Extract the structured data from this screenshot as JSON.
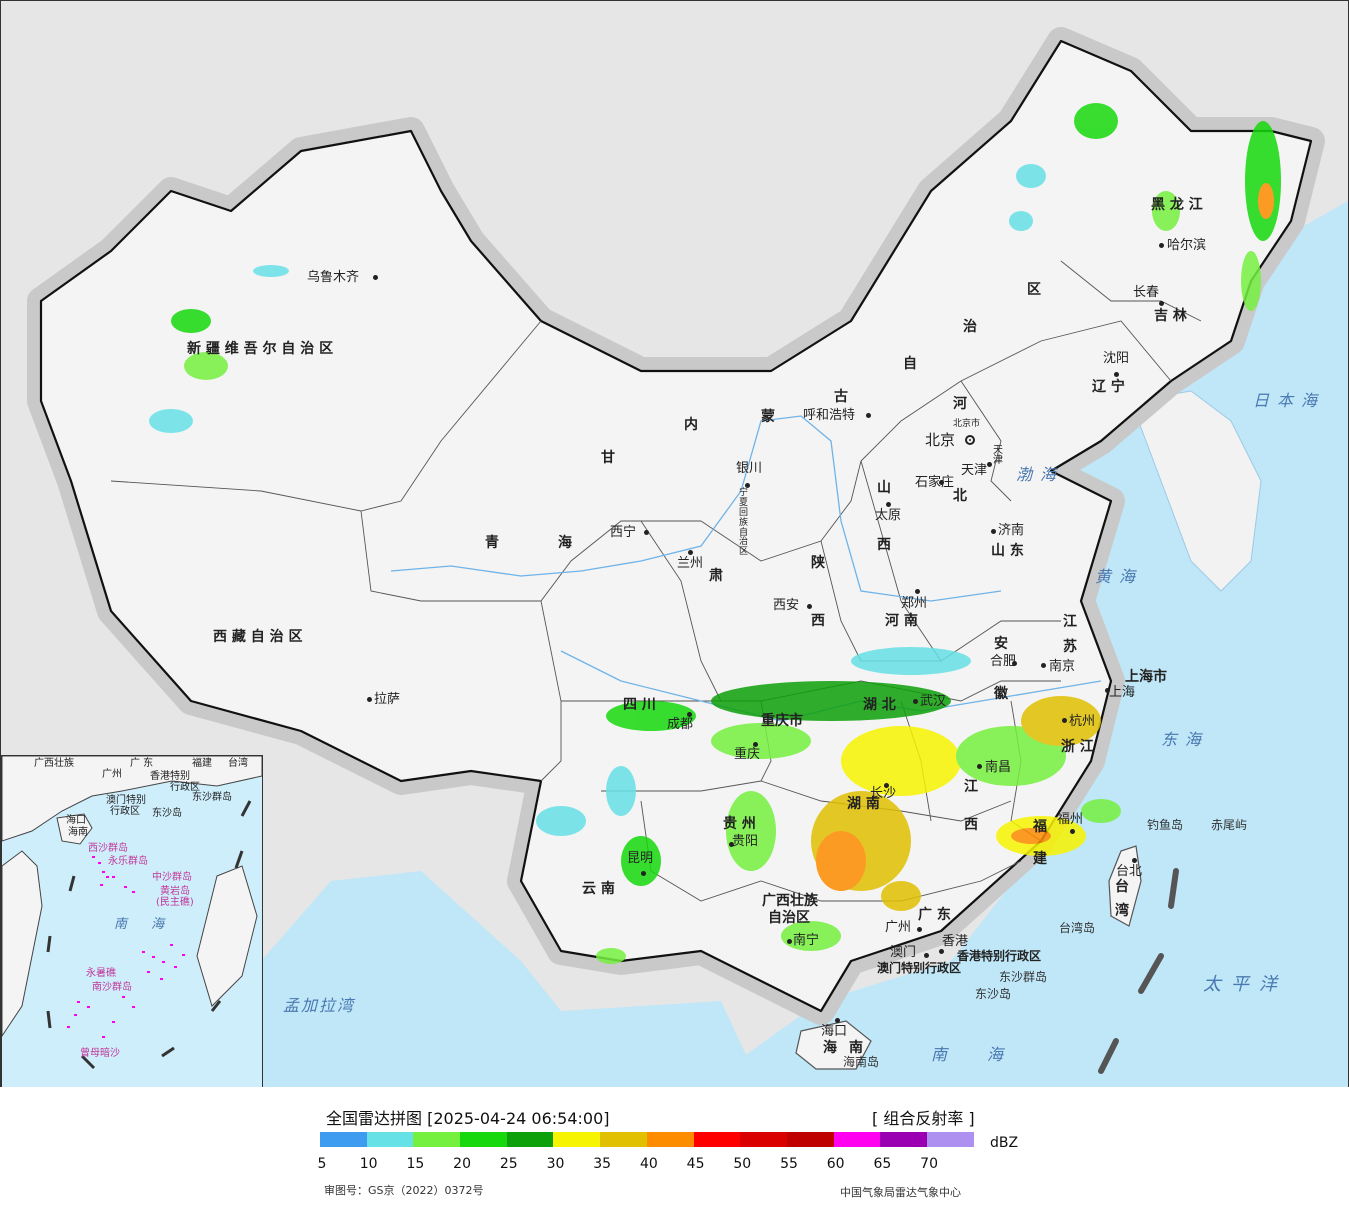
{
  "map": {
    "colors": {
      "background": "#e6e6e6",
      "land": "#f4f4f4",
      "sea": "#bfe7f8",
      "border": "#111111",
      "river": "#6fb3e8"
    },
    "provinces": [
      {
        "id": "xinjiang",
        "label": "新 疆 维 吾 尔 自 治 区"
      },
      {
        "id": "xizang",
        "label": "西 藏 自 治 区"
      },
      {
        "id": "qinghai-1",
        "label": "青"
      },
      {
        "id": "qinghai-2",
        "label": "海"
      },
      {
        "id": "gansu-1",
        "label": "甘"
      },
      {
        "id": "gansu-2",
        "label": "肃"
      },
      {
        "id": "neimenggu-1",
        "label": "内"
      },
      {
        "id": "neimenggu-2",
        "label": "蒙"
      },
      {
        "id": "neimenggu-3",
        "label": "古"
      },
      {
        "id": "neimenggu-4",
        "label": "自"
      },
      {
        "id": "neimenggu-5",
        "label": "治"
      },
      {
        "id": "neimenggu-6",
        "label": "区"
      },
      {
        "id": "heilongjiang",
        "label": "黑  龙  江"
      },
      {
        "id": "jilin",
        "label": "吉  林"
      },
      {
        "id": "liaoning",
        "label": "辽  宁"
      },
      {
        "id": "hebei-1",
        "label": "河"
      },
      {
        "id": "hebei-2",
        "label": "北"
      },
      {
        "id": "shanxi-1",
        "label": "山"
      },
      {
        "id": "shanxi-2",
        "label": "西"
      },
      {
        "id": "shaanxi-1",
        "label": "陕"
      },
      {
        "id": "shaanxi-2",
        "label": "西"
      },
      {
        "id": "shandong",
        "label": "山  东"
      },
      {
        "id": "henan",
        "label": "河  南"
      },
      {
        "id": "jiangsu-1",
        "label": "江"
      },
      {
        "id": "jiangsu-2",
        "label": "苏"
      },
      {
        "id": "anhui-1",
        "label": "安"
      },
      {
        "id": "anhui-2",
        "label": "徽"
      },
      {
        "id": "hubei",
        "label": "湖  北"
      },
      {
        "id": "sichuan",
        "label": "四    川"
      },
      {
        "id": "chongqing",
        "label": "重庆市"
      },
      {
        "id": "hunan",
        "label": "湖  南"
      },
      {
        "id": "jiangxi-1",
        "label": "江"
      },
      {
        "id": "jiangxi-2",
        "label": "西"
      },
      {
        "id": "zhejiang",
        "label": "浙 江"
      },
      {
        "id": "fujian-1",
        "label": "福"
      },
      {
        "id": "fujian-2",
        "label": "建"
      },
      {
        "id": "guizhou",
        "label": "贵  州"
      },
      {
        "id": "yunnan",
        "label": "云    南"
      },
      {
        "id": "guangxi-1",
        "label": "广西壮族"
      },
      {
        "id": "guangxi-2",
        "label": "自治区"
      },
      {
        "id": "guangdong",
        "label": "广  东"
      },
      {
        "id": "hainan-1",
        "label": "海"
      },
      {
        "id": "hainan-2",
        "label": "南"
      },
      {
        "id": "taiwan-1",
        "label": "台"
      },
      {
        "id": "taiwan-2",
        "label": "湾"
      },
      {
        "id": "shanghai",
        "label": "上海市"
      },
      {
        "id": "tianjin",
        "label": "天津"
      },
      {
        "id": "beijing-small",
        "label": "北京市"
      },
      {
        "id": "ningxia",
        "label": "宁夏回族自治区"
      },
      {
        "id": "hk-sar",
        "label": "香港特别行政区"
      },
      {
        "id": "macau-sar",
        "label": "澳门特别行政区"
      }
    ],
    "cities": [
      {
        "id": "urumqi",
        "name": "乌鲁木齐"
      },
      {
        "id": "lhasa",
        "name": "拉萨"
      },
      {
        "id": "xining",
        "name": "西宁"
      },
      {
        "id": "lanzhou",
        "name": "兰州"
      },
      {
        "id": "yinchuan",
        "name": "银川"
      },
      {
        "id": "hohhot",
        "name": "呼和浩特"
      },
      {
        "id": "harbin",
        "name": "哈尔滨"
      },
      {
        "id": "changchun",
        "name": "长春"
      },
      {
        "id": "shenyang",
        "name": "沈阳"
      },
      {
        "id": "beijing",
        "name": "北京"
      },
      {
        "id": "tianjin-city",
        "name": "天津"
      },
      {
        "id": "shijiazhuang",
        "name": "石家庄"
      },
      {
        "id": "taiyuan",
        "name": "太原"
      },
      {
        "id": "jinan",
        "name": "济南"
      },
      {
        "id": "xian",
        "name": "西安"
      },
      {
        "id": "zhengzhou",
        "name": "郑州"
      },
      {
        "id": "hefei",
        "name": "合肥"
      },
      {
        "id": "nanjing",
        "name": "南京"
      },
      {
        "id": "shanghai-city",
        "name": "上海"
      },
      {
        "id": "wuhan",
        "name": "武汉"
      },
      {
        "id": "chengdu",
        "name": "成都"
      },
      {
        "id": "chongqing-city",
        "name": "重庆"
      },
      {
        "id": "hangzhou",
        "name": "杭州"
      },
      {
        "id": "changsha",
        "name": "长沙"
      },
      {
        "id": "nanchang",
        "name": "南昌"
      },
      {
        "id": "fuzhou",
        "name": "福州"
      },
      {
        "id": "guiyang",
        "name": "贵阳"
      },
      {
        "id": "kunming",
        "name": "昆明"
      },
      {
        "id": "nanning",
        "name": "南宁"
      },
      {
        "id": "guangzhou",
        "name": "广州"
      },
      {
        "id": "hongkong",
        "name": "香港"
      },
      {
        "id": "macau",
        "name": "澳门"
      },
      {
        "id": "haikou",
        "name": "海口"
      },
      {
        "id": "taibei",
        "name": "台北"
      }
    ],
    "seas": [
      {
        "id": "sea-of-japan",
        "name": "日本海"
      },
      {
        "id": "bohai",
        "name": "渤海"
      },
      {
        "id": "yellow-sea",
        "name": "黄海"
      },
      {
        "id": "east-sea",
        "name": "东海"
      },
      {
        "id": "pacific",
        "name": "太平洋"
      },
      {
        "id": "south-sea",
        "name": "南海"
      },
      {
        "id": "bay-of-bengal",
        "name": "孟加拉湾"
      }
    ],
    "islands": [
      {
        "id": "diaoyu",
        "name": "钓鱼岛"
      },
      {
        "id": "chiwei",
        "name": "赤尾屿"
      },
      {
        "id": "taiwan-island",
        "name": "台湾岛"
      },
      {
        "id": "dongsha-qundao",
        "name": "东沙群岛"
      },
      {
        "id": "dongsha-dao",
        "name": "东沙岛"
      },
      {
        "id": "hainan-island",
        "name": "海南岛"
      }
    ],
    "inset": {
      "labels": [
        {
          "id": "i-guangxi",
          "text": "广西壮族"
        },
        {
          "id": "i-guangdong",
          "text": "广  东"
        },
        {
          "id": "i-fujian",
          "text": "福建"
        },
        {
          "id": "i-taiwan",
          "text": "台湾"
        },
        {
          "id": "i-guangzhou",
          "text": "广州"
        },
        {
          "id": "i-hk",
          "text": "香港特别"
        },
        {
          "id": "i-hk2",
          "text": "行政区"
        },
        {
          "id": "i-macau",
          "text": "澳门特别"
        },
        {
          "id": "i-macau2",
          "text": "行政区"
        },
        {
          "id": "i-dongsha",
          "text": "东沙群岛"
        },
        {
          "id": "i-dongsha2",
          "text": "东沙岛"
        },
        {
          "id": "i-haikou",
          "text": "海口"
        },
        {
          "id": "i-hainan",
          "text": "海南"
        },
        {
          "id": "i-xisha",
          "text": "西沙群岛"
        },
        {
          "id": "i-yongle",
          "text": "永乐群岛"
        },
        {
          "id": "i-zhongsha",
          "text": "中沙群岛"
        },
        {
          "id": "i-huangyan",
          "text": "黄岩岛"
        },
        {
          "id": "i-huangyan2",
          "text": "(民主礁)"
        },
        {
          "id": "i-nansha",
          "text": "南沙群岛"
        },
        {
          "id": "i-yongshu",
          "text": "永暑礁"
        },
        {
          "id": "i-zengmu",
          "text": "曾母暗沙"
        }
      ],
      "sea": "南  海"
    }
  },
  "legend": {
    "title": "全国雷达拼图 [2025-04-24 06:54:00]",
    "product": "[ 组合反射率 ]",
    "unit": "dBZ",
    "approval": "审图号：GS京（2022）0372号",
    "source": "中国气象局雷达气象中心",
    "ticks": [
      "5",
      "10",
      "15",
      "20",
      "25",
      "30",
      "35",
      "40",
      "45",
      "50",
      "55",
      "60",
      "65",
      "70"
    ],
    "colors": [
      "#3d9cf0",
      "#66e1e6",
      "#76f03f",
      "#16d80c",
      "#0ea00a",
      "#f7f401",
      "#e1c002",
      "#fe8c00",
      "#ff0000",
      "#db0000",
      "#bf0000",
      "#ff00f0",
      "#9a00b2",
      "#ae90f0"
    ]
  }
}
